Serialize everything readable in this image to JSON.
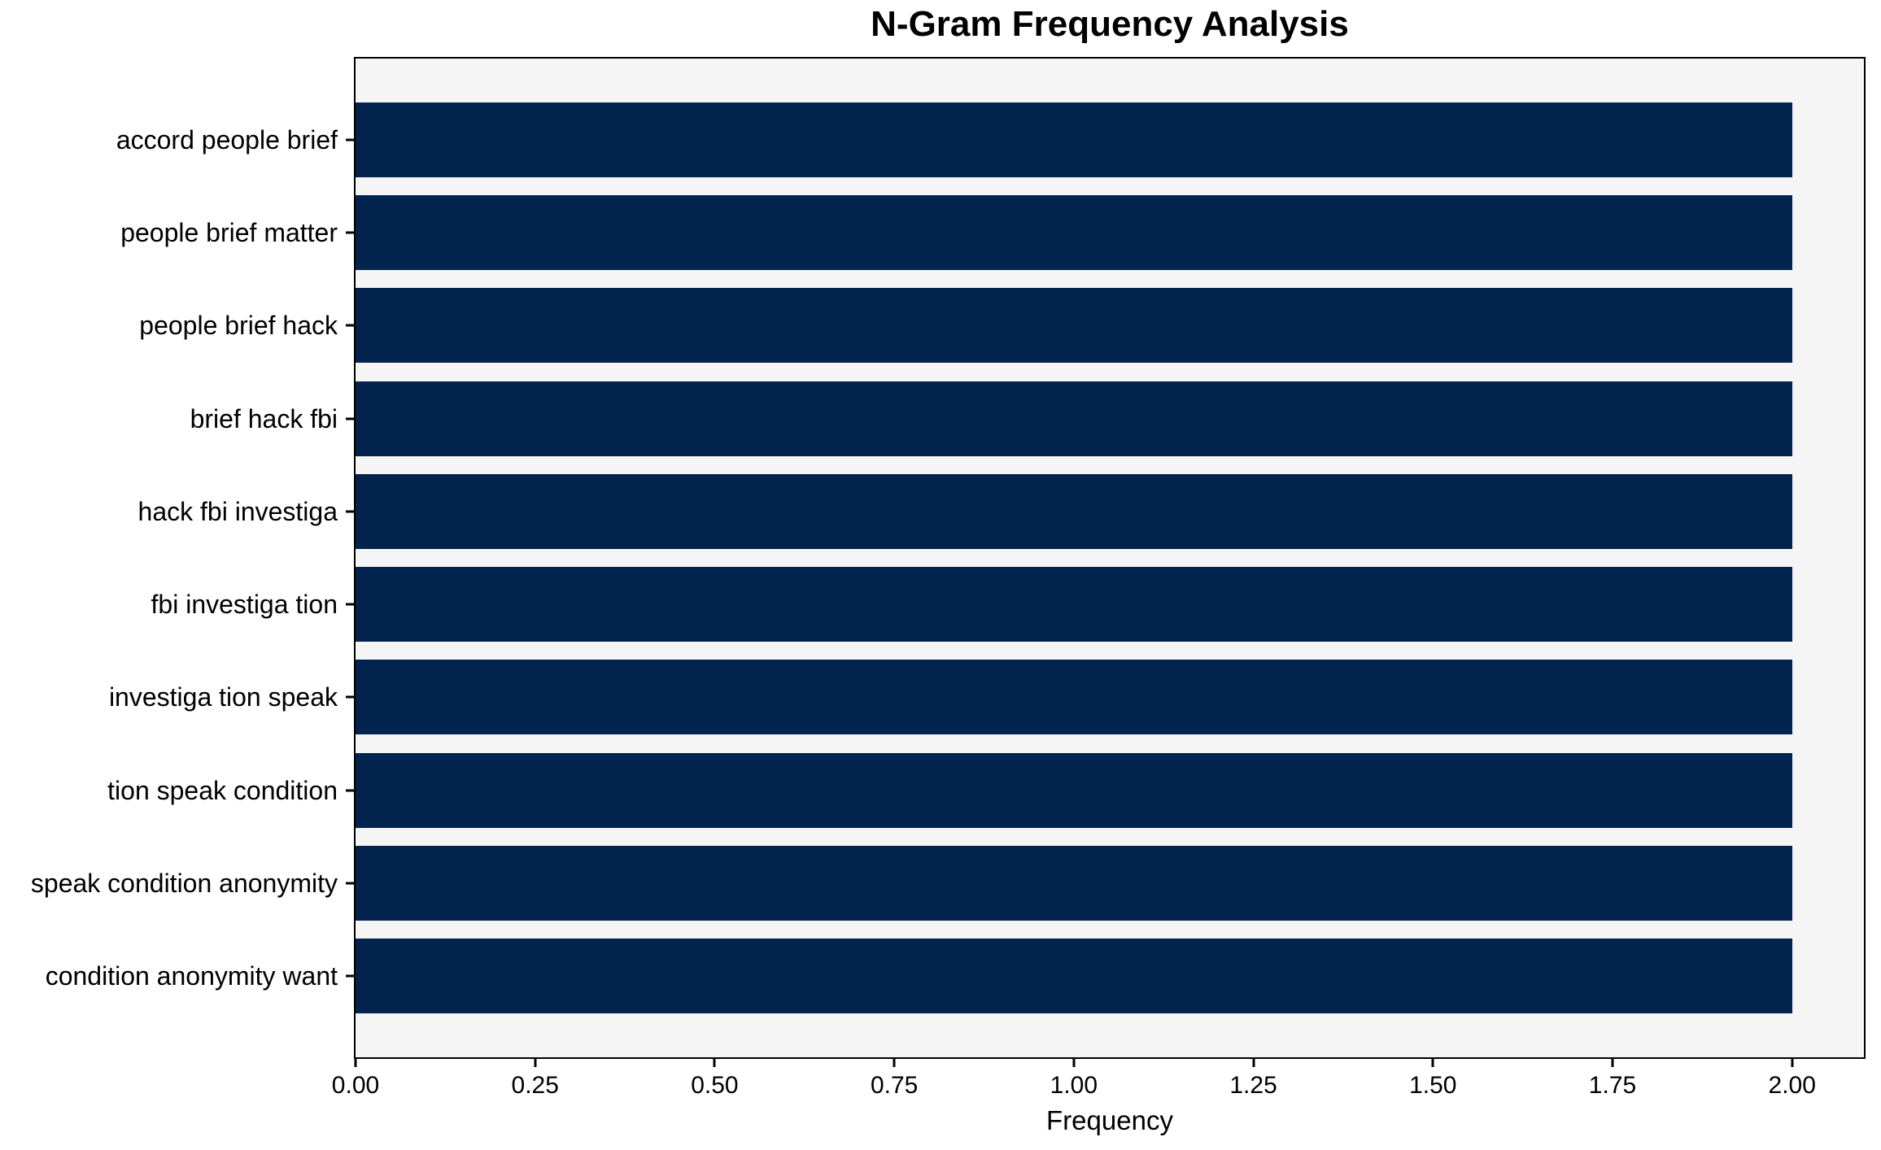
{
  "chart_data": {
    "type": "bar",
    "orientation": "horizontal",
    "title": "N-Gram Frequency Analysis",
    "xlabel": "Frequency",
    "ylabel": "",
    "categories": [
      "accord people brief",
      "people brief matter",
      "people brief hack",
      "brief hack fbi",
      "hack fbi investiga",
      "fbi investiga tion",
      "investiga tion speak",
      "tion speak condition",
      "speak condition anonymity",
      "condition anonymity want"
    ],
    "values": [
      2,
      2,
      2,
      2,
      2,
      2,
      2,
      2,
      2,
      2
    ],
    "xlim": [
      0,
      2.1
    ],
    "xticks": [
      {
        "value": 0.0,
        "label": "0.00"
      },
      {
        "value": 0.25,
        "label": "0.25"
      },
      {
        "value": 0.5,
        "label": "0.50"
      },
      {
        "value": 0.75,
        "label": "0.75"
      },
      {
        "value": 1.0,
        "label": "1.00"
      },
      {
        "value": 1.25,
        "label": "1.25"
      },
      {
        "value": 1.5,
        "label": "1.50"
      },
      {
        "value": 1.75,
        "label": "1.75"
      },
      {
        "value": 2.0,
        "label": "2.00"
      }
    ],
    "grid": false,
    "legend": null,
    "bar_color": "#02234d",
    "plot_background_color": "#f5f5f5",
    "figure_background_color": "#ffffff",
    "axis_border_color": "#000000",
    "text_color": "#000000"
  }
}
